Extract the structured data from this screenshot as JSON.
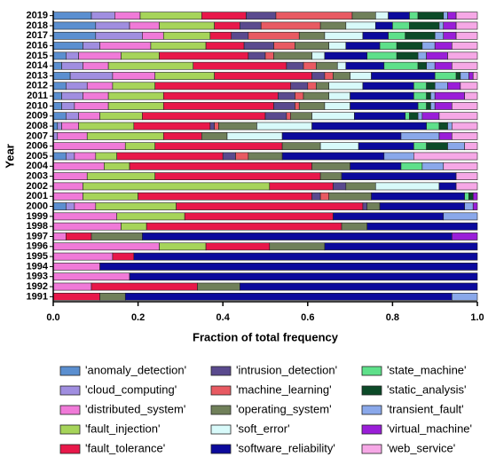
{
  "chart_data": {
    "type": "stacked-barh",
    "y_label": "Year",
    "x_label": "Fraction of total frequency",
    "categories": [
      "2019",
      "2018",
      "2017",
      "2016",
      "2015",
      "2014",
      "2013",
      "2012",
      "2011",
      "2010",
      "2009",
      "2008",
      "2007",
      "2006",
      "2005",
      "2004",
      "2003",
      "2002",
      "2001",
      "2000",
      "1999",
      "1998",
      "1997",
      "1996",
      "1995",
      "1994",
      "1993",
      "1992",
      "1991"
    ],
    "xlim": [
      0,
      1
    ],
    "xticks": [
      {
        "value": 0,
        "label": "0.0"
      },
      0.2,
      0.4,
      0.6,
      0.8,
      {
        "value": 1,
        "label": "1.0"
      }
    ],
    "series": [
      {
        "name": "'anomaly_detection'",
        "color": "#5b8fd0",
        "values": [
          0.09,
          0.1,
          0.1,
          0.07,
          0.03,
          0.02,
          0.04,
          0.03,
          0.02,
          0.02,
          0.03,
          0.01,
          0,
          0,
          0.03,
          0,
          0,
          0,
          0,
          0.03,
          0,
          0,
          0,
          0,
          0,
          0,
          0,
          0,
          0
        ]
      },
      {
        "name": "'cloud_computing'",
        "color": "#a08ee0",
        "values": [
          0.055,
          0.08,
          0.11,
          0.04,
          0.03,
          0.05,
          0.1,
          0.05,
          0.05,
          0.03,
          0.03,
          0.01,
          0.01,
          0,
          0.02,
          0,
          0,
          0,
          0,
          0.02,
          0,
          0,
          0,
          0,
          0,
          0,
          0,
          0,
          0
        ]
      },
      {
        "name": "'distributed_system'",
        "color": "#f07ad8",
        "values": [
          0.06,
          0.07,
          0.05,
          0.12,
          0.1,
          0.06,
          0.1,
          0.06,
          0.06,
          0.08,
          0.05,
          0.04,
          0.07,
          0.17,
          0.05,
          0.12,
          0.08,
          0.07,
          0.07,
          0.05,
          0.15,
          0.16,
          0.03,
          0.25,
          0.14,
          0.11,
          0.18,
          0.09,
          0
        ]
      },
      {
        "name": "'fault_injection'",
        "color": "#a6d45a",
        "values": [
          0.145,
          0.13,
          0.11,
          0.13,
          0.09,
          0.2,
          0.14,
          0.1,
          0.13,
          0.13,
          0.1,
          0.13,
          0.18,
          0.07,
          0.05,
          0.06,
          0.16,
          0.44,
          0.13,
          0.19,
          0.16,
          0.06,
          0,
          0.11,
          0,
          0,
          0,
          0,
          0
        ]
      },
      {
        "name": "'fault_tolerance'",
        "color": "#e8184a",
        "values": [
          0.105,
          0.06,
          0.05,
          0.09,
          0.21,
          0.22,
          0.23,
          0.32,
          0.27,
          0.26,
          0.29,
          0.18,
          0.09,
          0.3,
          0.25,
          0.43,
          0.39,
          0.15,
          0.41,
          0.44,
          0.35,
          0.46,
          0.06,
          0.15,
          0.05,
          0,
          0,
          0.25,
          0.11
        ]
      },
      {
        "name": "'intrusion_detection'",
        "color": "#5a4a8e",
        "values": [
          0.07,
          0.05,
          0.04,
          0.07,
          0.04,
          0.04,
          0.03,
          0.04,
          0.04,
          0.05,
          0.05,
          0.01,
          0,
          0,
          0.03,
          0,
          0,
          0.03,
          0.02,
          0.01,
          0,
          0,
          0,
          0,
          0,
          0,
          0,
          0,
          0
        ]
      },
      {
        "name": "'machine_learning'",
        "color": "#e85a62",
        "values": [
          0.18,
          0.14,
          0.12,
          0.05,
          0.02,
          0.03,
          0.02,
          0.02,
          0.02,
          0.01,
          0.01,
          0.01,
          0,
          0,
          0.03,
          0,
          0,
          0,
          0.02,
          0,
          0,
          0,
          0,
          0,
          0,
          0,
          0,
          0,
          0
        ]
      },
      {
        "name": "'operating_system'",
        "color": "#70805a",
        "values": [
          0.055,
          0.06,
          0.06,
          0.08,
          0.09,
          0.05,
          0.04,
          0.03,
          0.06,
          0.06,
          0.05,
          0.09,
          0.06,
          0.09,
          0.08,
          0.09,
          0.05,
          0.07,
          0.1,
          0.03,
          0,
          0.06,
          0.12,
          0.13,
          0,
          0,
          0,
          0.1,
          0.06
        ]
      },
      {
        "name": "'soft_error'",
        "color": "#d8fafa",
        "values": [
          0.03,
          0.07,
          0.09,
          0.04,
          0.03,
          0.02,
          0.05,
          0.08,
          0.05,
          0.06,
          0.1,
          0.13,
          0.13,
          0.09,
          0,
          0,
          0,
          0.15,
          0,
          0,
          0,
          0,
          0,
          0,
          0,
          0,
          0,
          0,
          0
        ]
      },
      {
        "name": "'software_reliability'",
        "color": "#0c0a9c",
        "values": [
          0.05,
          0.04,
          0.06,
          0.08,
          0.1,
          0.09,
          0.15,
          0.12,
          0.15,
          0.16,
          0.12,
          0.27,
          0.28,
          0.13,
          0.24,
          0.12,
          0.27,
          0.04,
          0.22,
          0.2,
          0.26,
          0.26,
          0.73,
          0.36,
          0.81,
          0.89,
          0.82,
          0.56,
          0.77
        ]
      },
      {
        "name": "'state_machine'",
        "color": "#5ee08a",
        "values": [
          0.02,
          0.04,
          0.04,
          0.04,
          0.07,
          0.08,
          0.05,
          0.03,
          0.03,
          0.02,
          0.01,
          0.03,
          0,
          0.03,
          0,
          0.05,
          0,
          0,
          0.01,
          0,
          0,
          0,
          0,
          0,
          0,
          0,
          0,
          0,
          0
        ]
      },
      {
        "name": "'static_analysis'",
        "color": "#0c4a28",
        "values": [
          0.06,
          0.07,
          0.07,
          0.06,
          0.05,
          0.02,
          0.01,
          0.02,
          0.01,
          0.01,
          0.02,
          0.02,
          0,
          0.05,
          0,
          0,
          0,
          0,
          0.01,
          0,
          0,
          0,
          0,
          0,
          0,
          0,
          0,
          0,
          0
        ]
      },
      {
        "name": "'transient_fault'",
        "color": "#8aa8ea",
        "values": [
          0.01,
          0.01,
          0.02,
          0.03,
          0.02,
          0.02,
          0.02,
          0.03,
          0.01,
          0.01,
          0.01,
          0.01,
          0.09,
          0.04,
          0.07,
          0.05,
          0,
          0,
          0,
          0.02,
          0.08,
          0,
          0,
          0,
          0,
          0,
          0,
          0,
          0.06
        ]
      },
      {
        "name": "'virtual_machine'",
        "color": "#9a1ed8",
        "values": [
          0.02,
          0.03,
          0.03,
          0.04,
          0.05,
          0.04,
          0.01,
          0.03,
          0.07,
          0.04,
          0.04,
          0,
          0.03,
          0,
          0,
          0,
          0,
          0,
          0.01,
          0.01,
          0,
          0,
          0.06,
          0,
          0,
          0,
          0,
          0,
          0
        ]
      },
      {
        "name": "'web_service'",
        "color": "#f6a8e6",
        "values": [
          0.05,
          0.05,
          0.05,
          0.06,
          0.07,
          0.06,
          0.01,
          0.04,
          0.03,
          0.06,
          0.09,
          0.06,
          0.06,
          0.03,
          0.15,
          0.08,
          0.05,
          0.05,
          0,
          0,
          0,
          0,
          0,
          0,
          0,
          0,
          0,
          0,
          0
        ]
      }
    ]
  }
}
